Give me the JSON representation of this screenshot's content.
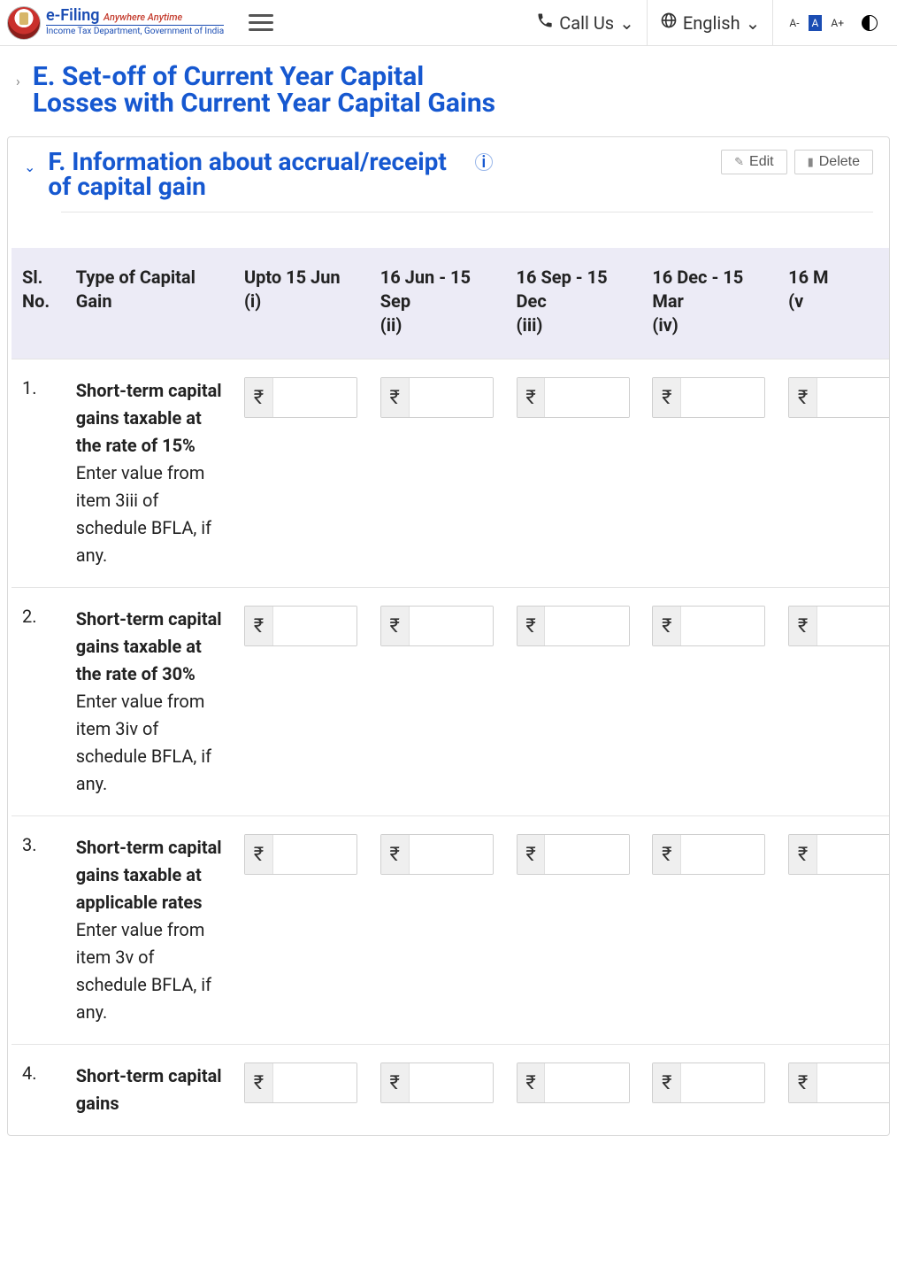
{
  "header": {
    "brand_main": "e-Filing",
    "brand_tag": "Anywhere Anytime",
    "brand_sub": "Income Tax Department, Government of India",
    "call_us": "Call Us",
    "language": "English",
    "font_small": "A-",
    "font_mid": "A",
    "font_large": "A+"
  },
  "sections": {
    "E_title_line1": "E. Set-off of Current Year Capital",
    "E_title_line2": "Losses with Current Year Capital Gains",
    "F_title_line1": "F. Information about accrual/receipt",
    "F_title_line2": "of capital gain",
    "edit_label": "Edit",
    "delete_label": "Delete"
  },
  "table": {
    "columns": {
      "sl": "Sl. No.",
      "type": "Type of Capital Gain",
      "c1": "Upto 15 Jun (i)",
      "c2": "16 Jun - 15 Sep\n(ii)",
      "c3": "16 Sep - 15 Dec\n(iii)",
      "c4": "16 Dec - 15 Mar\n(iv)",
      "c5": "16 M\n(v"
    },
    "currency_symbol": "₹",
    "rows": [
      {
        "sl": "1.",
        "type_bold": "Short-term capital gains taxable at the rate of 15%",
        "type_sub": "Enter value from item 3iii of schedule BFLA, if any.",
        "vals": [
          "",
          "",
          "",
          "",
          ""
        ]
      },
      {
        "sl": "2.",
        "type_bold": "Short-term capital gains taxable at the rate of 30%",
        "type_sub": "Enter value from item 3iv of schedule BFLA, if any.",
        "vals": [
          "",
          "",
          "",
          "",
          ""
        ]
      },
      {
        "sl": "3.",
        "type_bold": "Short-term capital gains taxable at applicable rates",
        "type_sub": "Enter value from item 3v of schedule BFLA, if any.",
        "vals": [
          "",
          "",
          "",
          "",
          ""
        ]
      },
      {
        "sl": "4.",
        "type_bold": "Short-term capital gains",
        "type_sub": "",
        "vals": [
          "",
          "",
          "",
          "",
          ""
        ]
      }
    ]
  }
}
